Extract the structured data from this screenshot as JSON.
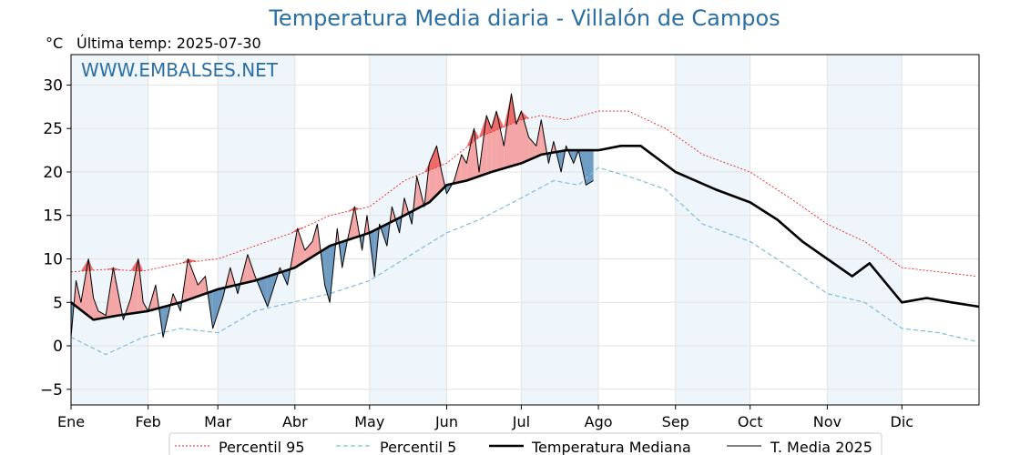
{
  "chart_data": {
    "type": "line",
    "title": "Temperatura Media diaria - Villalón de Campos",
    "unit_label": "°C",
    "last_temp_label": "Última temp: 2025-07-30",
    "watermark": "WWW.EMBALSES.NET",
    "xlabel": "",
    "ylabel": "",
    "xlim": [
      1,
      366
    ],
    "ylim": [
      -6.8,
      33.5
    ],
    "yticks": [
      -5,
      0,
      5,
      10,
      15,
      20,
      25,
      30
    ],
    "months": [
      "Ene",
      "Feb",
      "Mar",
      "Abr",
      "May",
      "Jun",
      "Jul",
      "Ago",
      "Sep",
      "Oct",
      "Nov",
      "Dic"
    ],
    "month_start_days": [
      1,
      32,
      60,
      91,
      121,
      152,
      182,
      213,
      244,
      274,
      305,
      335
    ],
    "grid": true,
    "legend_position": "bottom",
    "colors": {
      "title": "#2a6fa3",
      "p95": "#e8231f",
      "p5": "#7fbcd8",
      "median": "#000000",
      "current": "#000000",
      "above_fill": "#f4a6a6",
      "above_fill_strong": "#ee6b6b",
      "below_fill": "#6f9cc3",
      "month_band": "#eef5fb"
    },
    "series": [
      {
        "name": "Percentil 95",
        "key": "p95",
        "style": "dotted",
        "x": [
          1,
          15,
          30,
          45,
          60,
          75,
          90,
          105,
          121,
          135,
          152,
          165,
          182,
          190,
          200,
          213,
          225,
          240,
          255,
          274,
          290,
          305,
          320,
          335,
          350,
          365
        ],
        "y": [
          8.5,
          8.8,
          8.6,
          9.5,
          10.0,
          11.5,
          13.0,
          15.0,
          16.0,
          19.0,
          21.0,
          24.0,
          26.0,
          26.5,
          26.0,
          27.0,
          27.0,
          25.0,
          22.0,
          20.0,
          17.0,
          14.0,
          12.0,
          9.0,
          8.5,
          8.0
        ]
      },
      {
        "name": "Percentil 5",
        "key": "p5",
        "style": "dashed",
        "x": [
          1,
          15,
          30,
          45,
          60,
          75,
          90,
          105,
          121,
          135,
          152,
          165,
          182,
          195,
          205,
          213,
          225,
          240,
          255,
          274,
          290,
          305,
          320,
          335,
          350,
          365
        ],
        "y": [
          1.0,
          -1.0,
          1.0,
          2.0,
          1.5,
          4.0,
          5.0,
          6.0,
          7.5,
          10.0,
          13.0,
          14.5,
          17.0,
          19.0,
          18.5,
          20.5,
          19.5,
          18.0,
          14.0,
          12.0,
          9.0,
          6.0,
          5.0,
          2.0,
          1.5,
          0.5
        ]
      },
      {
        "name": "Temperatura Mediana",
        "key": "median",
        "style": "solid-thick",
        "x": [
          1,
          10,
          20,
          32,
          45,
          60,
          75,
          91,
          105,
          121,
          135,
          145,
          152,
          160,
          170,
          182,
          190,
          200,
          213,
          222,
          230,
          244,
          260,
          274,
          285,
          295,
          305,
          315,
          322,
          335,
          345,
          355,
          366
        ],
        "y": [
          5.0,
          3.0,
          3.5,
          4.0,
          5.0,
          6.5,
          7.5,
          9.0,
          11.5,
          13.0,
          15.0,
          16.5,
          18.5,
          19.0,
          20.0,
          21.0,
          22.0,
          22.5,
          22.5,
          23.0,
          23.0,
          20.0,
          18.0,
          16.5,
          14.5,
          12.0,
          10.0,
          8.0,
          9.5,
          5.0,
          5.5,
          5.0,
          4.5
        ]
      },
      {
        "name": "T. Media 2025",
        "key": "current",
        "style": "solid-thin",
        "x": [
          1,
          3,
          5,
          8,
          10,
          12,
          15,
          18,
          22,
          25,
          28,
          30,
          32,
          35,
          38,
          42,
          45,
          48,
          52,
          55,
          58,
          62,
          65,
          68,
          72,
          75,
          80,
          85,
          88,
          92,
          95,
          98,
          100,
          103,
          105,
          108,
          110,
          112,
          115,
          118,
          120,
          123,
          125,
          128,
          130,
          133,
          135,
          138,
          140,
          143,
          145,
          148,
          150,
          152,
          155,
          158,
          160,
          163,
          165,
          168,
          170,
          172,
          175,
          178,
          180,
          182,
          185,
          188,
          190,
          193,
          195,
          198,
          200,
          203,
          205,
          208,
          211
        ],
        "y": [
          1.0,
          7.5,
          5.0,
          10.0,
          5.5,
          4.0,
          3.5,
          9.0,
          3.0,
          5.5,
          10.0,
          5.0,
          4.0,
          7.0,
          1.0,
          6.0,
          4.0,
          10.0,
          7.0,
          8.0,
          2.0,
          5.5,
          9.0,
          6.0,
          10.5,
          8.0,
          4.5,
          9.0,
          7.0,
          13.5,
          11.0,
          12.0,
          14.0,
          7.0,
          5.0,
          13.5,
          9.0,
          12.0,
          16.0,
          11.0,
          15.0,
          8.0,
          14.0,
          11.5,
          16.0,
          13.0,
          17.0,
          14.0,
          19.5,
          16.0,
          21.0,
          23.0,
          20.0,
          17.5,
          19.0,
          22.0,
          21.0,
          25.0,
          20.0,
          26.5,
          25.0,
          27.0,
          23.0,
          29.0,
          25.5,
          27.0,
          24.0,
          23.0,
          26.0,
          21.0,
          23.5,
          20.0,
          23.0,
          21.0,
          22.5,
          18.5,
          19.0
        ]
      }
    ]
  }
}
